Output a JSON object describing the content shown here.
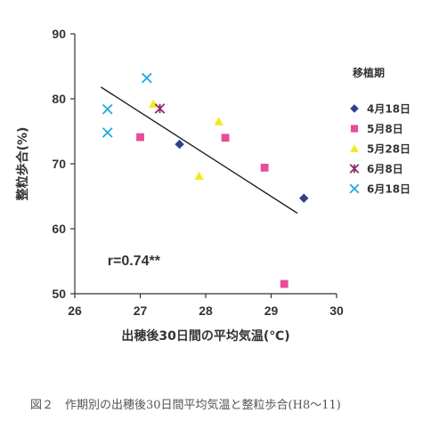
{
  "chart_data": {
    "type": "scatter",
    "xlabel": "出穂後30日間の平均気温(℃)",
    "ylabel": "整粒歩合(%)",
    "xlim": [
      26,
      30
    ],
    "ylim": [
      50,
      90
    ],
    "x_ticks": [
      "26",
      "27",
      "28",
      "29",
      "30"
    ],
    "y_ticks": [
      "50",
      "60",
      "70",
      "80",
      "90"
    ],
    "grid": false,
    "legend_title": "移植期",
    "legend_position": "right",
    "annotation": "r=0.74**",
    "series": [
      {
        "name": "4月18日",
        "marker": "diamond",
        "color": "#2e3f94",
        "points": [
          [
            27.6,
            73.0
          ],
          [
            29.5,
            64.7
          ]
        ]
      },
      {
        "name": "5月8日",
        "marker": "square",
        "color": "#e84d9b",
        "points": [
          [
            27.0,
            74.1
          ],
          [
            28.3,
            74.0
          ],
          [
            28.9,
            69.4
          ],
          [
            29.2,
            51.5
          ]
        ]
      },
      {
        "name": "5月28日",
        "marker": "triangle",
        "color": "#f2ea1f",
        "points": [
          [
            27.2,
            79.2
          ],
          [
            27.9,
            68.1
          ],
          [
            28.2,
            76.5
          ]
        ]
      },
      {
        "name": "6月8日",
        "marker": "star",
        "color": "#8e2a6c",
        "points": [
          [
            27.3,
            78.5
          ]
        ]
      },
      {
        "name": "6月18日",
        "marker": "x",
        "color": "#24a7e0",
        "points": [
          [
            26.5,
            78.4
          ],
          [
            26.5,
            74.8
          ],
          [
            27.1,
            83.2
          ]
        ]
      }
    ],
    "trendline": {
      "x": [
        26.4,
        29.4
      ],
      "y": [
        81.8,
        62.4
      ]
    }
  },
  "caption": "図２　作期別の出穂後30日間平均気温と整粒歩合(H8～11)"
}
